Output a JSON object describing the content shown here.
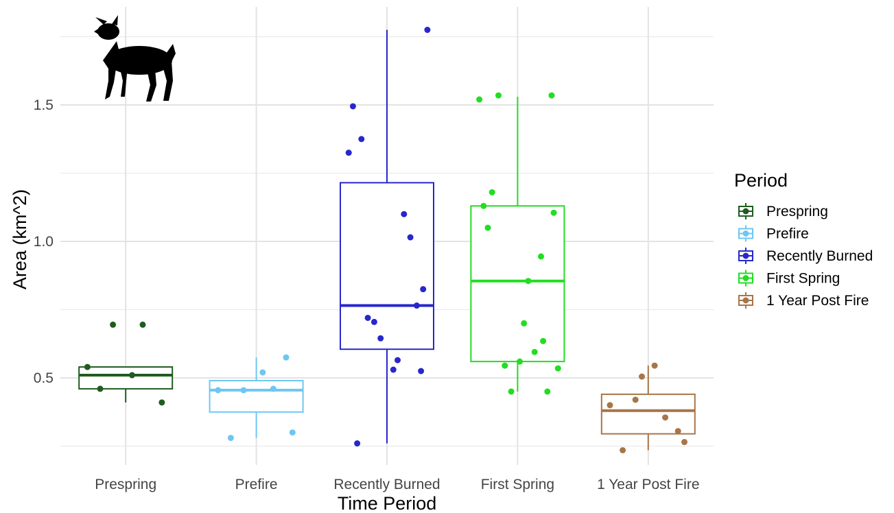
{
  "chart_data": {
    "type": "boxplot",
    "title": "",
    "xlabel": "Time Period",
    "ylabel": "Area (km^2)",
    "ylim": [
      0.2,
      1.8
    ],
    "yticks": [
      0.5,
      1.0,
      1.5
    ],
    "ytick_labels": [
      "0.5",
      "1.0",
      "1.5"
    ],
    "grid": true,
    "legend": {
      "title": "Period",
      "placement": "right"
    },
    "categories": [
      "Prespring",
      "Prefire",
      "Recently Burned",
      "First Spring",
      "1 Year Post Fire"
    ],
    "series": [
      {
        "name": "Prespring",
        "color": "#1f5c1f",
        "box": {
          "whisker_low": 0.41,
          "q1": 0.46,
          "median": 0.51,
          "q3": 0.54,
          "whisker_high": 0.54
        },
        "points": [
          0.54,
          0.695,
          0.695,
          0.41,
          0.46,
          0.51
        ]
      },
      {
        "name": "Prefire",
        "color": "#6ec6f2",
        "box": {
          "whisker_low": 0.28,
          "q1": 0.375,
          "median": 0.455,
          "q3": 0.49,
          "whisker_high": 0.575
        },
        "points": [
          0.455,
          0.46,
          0.455,
          0.3,
          0.28,
          0.52,
          0.575
        ]
      },
      {
        "name": "Recently Burned",
        "color": "#2727cc",
        "box": {
          "whisker_low": 0.26,
          "q1": 0.605,
          "median": 0.765,
          "q3": 1.215,
          "whisker_high": 1.775
        },
        "points": [
          1.325,
          1.1,
          0.705,
          0.825,
          1.375,
          0.53,
          0.765,
          0.645,
          1.775,
          1.495,
          1.015,
          0.72,
          0.565,
          0.525,
          0.26
        ]
      },
      {
        "name": "First Spring",
        "color": "#22dd22",
        "box": {
          "whisker_low": 0.45,
          "q1": 0.56,
          "median": 0.855,
          "q3": 1.13,
          "whisker_high": 1.53
        },
        "points": [
          1.52,
          0.595,
          0.545,
          1.105,
          1.18,
          0.7,
          0.45,
          0.45,
          0.535,
          1.13,
          0.945,
          1.535,
          0.855,
          1.535,
          1.05,
          0.56,
          0.635
        ]
      },
      {
        "name": "1 Year Post Fire",
        "color": "#a87548",
        "box": {
          "whisker_low": 0.235,
          "q1": 0.295,
          "median": 0.38,
          "q3": 0.44,
          "whisker_high": 0.545
        },
        "points": [
          0.4,
          0.355,
          0.42,
          0.265,
          0.235,
          0.545,
          0.305,
          0.505
        ]
      }
    ]
  },
  "icon": {
    "name": "deer-silhouette-icon",
    "color": "#000000"
  }
}
